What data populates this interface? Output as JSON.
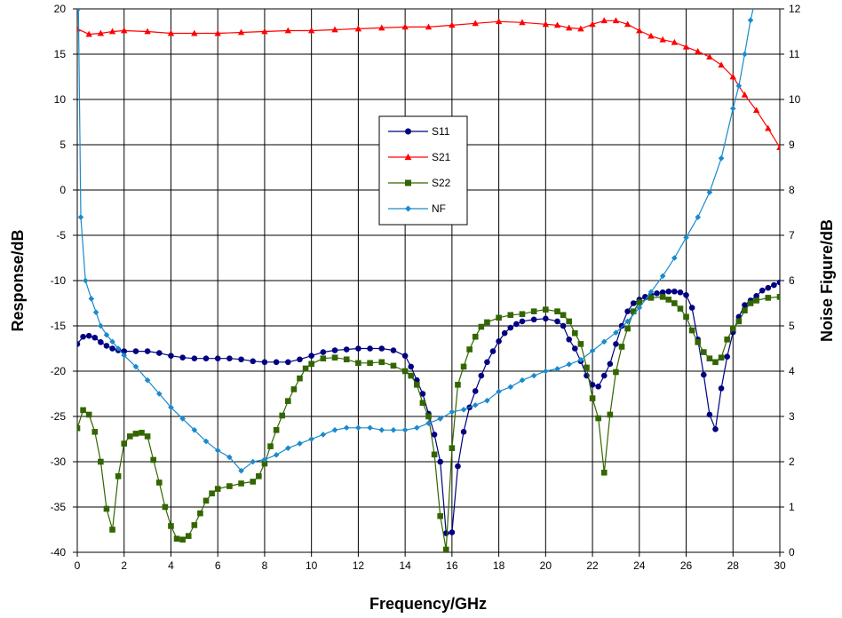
{
  "chart_data": {
    "type": "line",
    "title": "",
    "xlabel": "Frequency/GHz",
    "ylabel": "Response/dB",
    "y2label": "Noise Figure/dB",
    "xlim": [
      0,
      30
    ],
    "ylim": [
      -40,
      20
    ],
    "y2lim": [
      0,
      12
    ],
    "x_ticks": [
      "0",
      "2",
      "4",
      "6",
      "8",
      "10",
      "12",
      "14",
      "16",
      "18",
      "20",
      "22",
      "24",
      "26",
      "28",
      "30"
    ],
    "y_ticks": [
      "20",
      "15",
      "10",
      "5",
      "0",
      "-5",
      "-10",
      "-15",
      "-20",
      "-25",
      "-30",
      "-35",
      "-40"
    ],
    "y2_ticks": [
      "12",
      "11",
      "10",
      "9",
      "8",
      "7",
      "6",
      "5",
      "4",
      "3",
      "2",
      "1",
      "0"
    ],
    "grid": true,
    "legend_position": "center",
    "series": [
      {
        "name": "S11",
        "color": "#000080",
        "marker": "circle",
        "axis": "left",
        "points": [
          [
            0,
            -17
          ],
          [
            0.25,
            -16.2
          ],
          [
            0.5,
            -16.1
          ],
          [
            0.75,
            -16.3
          ],
          [
            1,
            -16.8
          ],
          [
            1.25,
            -17.2
          ],
          [
            1.5,
            -17.5
          ],
          [
            1.75,
            -17.7
          ],
          [
            2,
            -17.8
          ],
          [
            2.5,
            -17.8
          ],
          [
            3,
            -17.8
          ],
          [
            3.5,
            -18
          ],
          [
            4,
            -18.3
          ],
          [
            4.5,
            -18.5
          ],
          [
            5,
            -18.6
          ],
          [
            5.5,
            -18.6
          ],
          [
            6,
            -18.6
          ],
          [
            6.5,
            -18.6
          ],
          [
            7,
            -18.7
          ],
          [
            7.5,
            -18.9
          ],
          [
            8,
            -19
          ],
          [
            8.5,
            -19
          ],
          [
            9,
            -19
          ],
          [
            9.5,
            -18.7
          ],
          [
            10,
            -18.3
          ],
          [
            10.5,
            -17.9
          ],
          [
            11,
            -17.7
          ],
          [
            11.5,
            -17.6
          ],
          [
            12,
            -17.5
          ],
          [
            12.5,
            -17.5
          ],
          [
            13,
            -17.5
          ],
          [
            13.5,
            -17.7
          ],
          [
            14,
            -18.3
          ],
          [
            14.25,
            -19.5
          ],
          [
            14.5,
            -21
          ],
          [
            14.75,
            -22.5
          ],
          [
            15,
            -24.7
          ],
          [
            15.25,
            -27
          ],
          [
            15.5,
            -30
          ],
          [
            15.75,
            -37.9
          ],
          [
            16,
            -37.8
          ],
          [
            16.25,
            -30.5
          ],
          [
            16.5,
            -26.7
          ],
          [
            16.75,
            -24
          ],
          [
            17,
            -22.2
          ],
          [
            17.25,
            -20.5
          ],
          [
            17.5,
            -19
          ],
          [
            17.75,
            -17.8
          ],
          [
            18,
            -16.7
          ],
          [
            18.25,
            -15.8
          ],
          [
            18.5,
            -15.2
          ],
          [
            18.75,
            -14.8
          ],
          [
            19,
            -14.5
          ],
          [
            19.5,
            -14.3
          ],
          [
            20,
            -14.2
          ],
          [
            20.5,
            -14.5
          ],
          [
            20.75,
            -15
          ],
          [
            21,
            -16.5
          ],
          [
            21.25,
            -17.5
          ],
          [
            21.5,
            -18.9
          ],
          [
            21.75,
            -20.5
          ],
          [
            22,
            -21.5
          ],
          [
            22.25,
            -21.7
          ],
          [
            22.5,
            -20.5
          ],
          [
            22.75,
            -19.2
          ],
          [
            23,
            -17
          ],
          [
            23.25,
            -15
          ],
          [
            23.5,
            -13.4
          ],
          [
            23.75,
            -12.5
          ],
          [
            24,
            -12.1
          ],
          [
            24.25,
            -11.8
          ],
          [
            24.5,
            -11.6
          ],
          [
            24.75,
            -11.4
          ],
          [
            25,
            -11.3
          ],
          [
            25.25,
            -11.2
          ],
          [
            25.5,
            -11.2
          ],
          [
            25.75,
            -11.3
          ],
          [
            26,
            -11.6
          ],
          [
            26.25,
            -13
          ],
          [
            26.5,
            -16.5
          ],
          [
            26.75,
            -20.4
          ],
          [
            27,
            -24.8
          ],
          [
            27.25,
            -26.4
          ],
          [
            27.5,
            -21.9
          ],
          [
            27.75,
            -18.4
          ],
          [
            28,
            -15.7
          ],
          [
            28.25,
            -14
          ],
          [
            28.5,
            -12.7
          ],
          [
            28.75,
            -12.2
          ],
          [
            29,
            -11.7
          ],
          [
            29.25,
            -11.1
          ],
          [
            29.5,
            -10.8
          ],
          [
            29.75,
            -10.5
          ],
          [
            30,
            -10.2
          ]
        ]
      },
      {
        "name": "S21",
        "color": "#ff0000",
        "marker": "triangle",
        "axis": "left",
        "points": [
          [
            0,
            17.8
          ],
          [
            0.5,
            17.2
          ],
          [
            1,
            17.3
          ],
          [
            1.5,
            17.5
          ],
          [
            2,
            17.6
          ],
          [
            3,
            17.5
          ],
          [
            4,
            17.3
          ],
          [
            5,
            17.3
          ],
          [
            6,
            17.3
          ],
          [
            7,
            17.4
          ],
          [
            8,
            17.5
          ],
          [
            9,
            17.6
          ],
          [
            10,
            17.6
          ],
          [
            11,
            17.7
          ],
          [
            12,
            17.8
          ],
          [
            13,
            17.9
          ],
          [
            14,
            18
          ],
          [
            15,
            18
          ],
          [
            16,
            18.2
          ],
          [
            17,
            18.4
          ],
          [
            18,
            18.6
          ],
          [
            19,
            18.5
          ],
          [
            20,
            18.3
          ],
          [
            20.5,
            18.2
          ],
          [
            21,
            17.9
          ],
          [
            21.5,
            17.8
          ],
          [
            22,
            18.3
          ],
          [
            22.5,
            18.7
          ],
          [
            23,
            18.7
          ],
          [
            23.5,
            18.3
          ],
          [
            24,
            17.6
          ],
          [
            24.5,
            17
          ],
          [
            25,
            16.6
          ],
          [
            25.5,
            16.3
          ],
          [
            26,
            15.8
          ],
          [
            26.5,
            15.3
          ],
          [
            27,
            14.7
          ],
          [
            27.5,
            13.8
          ],
          [
            28,
            12.5
          ],
          [
            28.5,
            10.5
          ],
          [
            29,
            8.8
          ],
          [
            29.5,
            6.8
          ],
          [
            30,
            4.7
          ]
        ]
      },
      {
        "name": "S22",
        "color": "#336600",
        "marker": "square",
        "axis": "left",
        "points": [
          [
            0,
            -26.3
          ],
          [
            0.25,
            -24.3
          ],
          [
            0.5,
            -24.8
          ],
          [
            0.75,
            -26.7
          ],
          [
            1,
            -30
          ],
          [
            1.25,
            -35.2
          ],
          [
            1.5,
            -37.5
          ],
          [
            1.75,
            -31.6
          ],
          [
            2,
            -28
          ],
          [
            2.25,
            -27.2
          ],
          [
            2.5,
            -26.9
          ],
          [
            2.75,
            -26.8
          ],
          [
            3,
            -27.2
          ],
          [
            3.25,
            -29.8
          ],
          [
            3.5,
            -32.3
          ],
          [
            3.75,
            -35
          ],
          [
            4,
            -37.1
          ],
          [
            4.25,
            -38.5
          ],
          [
            4.5,
            -38.6
          ],
          [
            4.75,
            -38.2
          ],
          [
            5,
            -37
          ],
          [
            5.25,
            -35.7
          ],
          [
            5.5,
            -34.3
          ],
          [
            5.75,
            -33.5
          ],
          [
            6,
            -33
          ],
          [
            6.5,
            -32.7
          ],
          [
            7,
            -32.4
          ],
          [
            7.5,
            -32.2
          ],
          [
            7.75,
            -31.6
          ],
          [
            8,
            -30.2
          ],
          [
            8.25,
            -28.3
          ],
          [
            8.5,
            -26.5
          ],
          [
            8.75,
            -24.9
          ],
          [
            9,
            -23.3
          ],
          [
            9.25,
            -22
          ],
          [
            9.5,
            -20.8
          ],
          [
            9.75,
            -19.7
          ],
          [
            10,
            -19.2
          ],
          [
            10.5,
            -18.6
          ],
          [
            11,
            -18.5
          ],
          [
            11.5,
            -18.7
          ],
          [
            12,
            -19.1
          ],
          [
            12.5,
            -19.1
          ],
          [
            13,
            -19
          ],
          [
            13.5,
            -19.4
          ],
          [
            14,
            -20
          ],
          [
            14.25,
            -20.5
          ],
          [
            14.5,
            -21.5
          ],
          [
            14.75,
            -23.5
          ],
          [
            15,
            -25
          ],
          [
            15.25,
            -29.2
          ],
          [
            15.5,
            -36
          ],
          [
            15.75,
            -39.7
          ],
          [
            16,
            -28.5
          ],
          [
            16.25,
            -21.5
          ],
          [
            16.5,
            -19.5
          ],
          [
            16.75,
            -17.6
          ],
          [
            17,
            -16.2
          ],
          [
            17.25,
            -15.1
          ],
          [
            17.5,
            -14.6
          ],
          [
            18,
            -14.1
          ],
          [
            18.5,
            -13.8
          ],
          [
            19,
            -13.7
          ],
          [
            19.5,
            -13.4
          ],
          [
            20,
            -13.2
          ],
          [
            20.5,
            -13.4
          ],
          [
            20.75,
            -13.8
          ],
          [
            21,
            -14.5
          ],
          [
            21.25,
            -15.8
          ],
          [
            21.5,
            -17
          ],
          [
            21.75,
            -19.6
          ],
          [
            22,
            -23
          ],
          [
            22.25,
            -25.2
          ],
          [
            22.5,
            -31.2
          ],
          [
            22.75,
            -24.8
          ],
          [
            23,
            -20.1
          ],
          [
            23.25,
            -17.3
          ],
          [
            23.5,
            -15.3
          ],
          [
            23.75,
            -13.4
          ],
          [
            24,
            -12.4
          ],
          [
            24.5,
            -11.9
          ],
          [
            25,
            -11.8
          ],
          [
            25.25,
            -12.1
          ],
          [
            25.5,
            -12.5
          ],
          [
            25.75,
            -13.1
          ],
          [
            26,
            -14
          ],
          [
            26.25,
            -15.5
          ],
          [
            26.5,
            -16.8
          ],
          [
            26.75,
            -17.9
          ],
          [
            27,
            -18.6
          ],
          [
            27.25,
            -19
          ],
          [
            27.5,
            -18.5
          ],
          [
            27.75,
            -16.5
          ],
          [
            28,
            -15.3
          ],
          [
            28.25,
            -14.5
          ],
          [
            28.5,
            -13.3
          ],
          [
            28.75,
            -12.5
          ],
          [
            29,
            -12.2
          ],
          [
            29.5,
            -11.9
          ],
          [
            30,
            -11.8
          ]
        ]
      },
      {
        "name": "NF",
        "color": "#1a8acc",
        "marker": "diamond",
        "axis": "right",
        "points": [
          [
            0.05,
            12
          ],
          [
            0.15,
            7.4
          ],
          [
            0.35,
            6.0
          ],
          [
            0.6,
            5.6
          ],
          [
            0.8,
            5.3
          ],
          [
            1,
            5.0
          ],
          [
            1.25,
            4.8
          ],
          [
            1.5,
            4.65
          ],
          [
            1.75,
            4.5
          ],
          [
            2,
            4.35
          ],
          [
            2.5,
            4.1
          ],
          [
            3,
            3.8
          ],
          [
            3.5,
            3.5
          ],
          [
            4,
            3.2
          ],
          [
            4.5,
            2.95
          ],
          [
            5,
            2.7
          ],
          [
            5.5,
            2.45
          ],
          [
            6,
            2.25
          ],
          [
            6.5,
            2.1
          ],
          [
            7,
            1.8
          ],
          [
            7.5,
            2.0
          ],
          [
            8,
            2.05
          ],
          [
            8.5,
            2.15
          ],
          [
            9,
            2.3
          ],
          [
            9.5,
            2.4
          ],
          [
            10,
            2.5
          ],
          [
            10.5,
            2.6
          ],
          [
            11,
            2.7
          ],
          [
            11.5,
            2.75
          ],
          [
            12,
            2.75
          ],
          [
            12.5,
            2.75
          ],
          [
            13,
            2.7
          ],
          [
            13.5,
            2.7
          ],
          [
            14,
            2.7
          ],
          [
            14.5,
            2.75
          ],
          [
            15,
            2.85
          ],
          [
            15.5,
            2.95
          ],
          [
            16,
            3.1
          ],
          [
            16.5,
            3.15
          ],
          [
            17,
            3.25
          ],
          [
            17.5,
            3.35
          ],
          [
            18,
            3.55
          ],
          [
            18.5,
            3.65
          ],
          [
            19,
            3.8
          ],
          [
            19.5,
            3.9
          ],
          [
            20,
            4.0
          ],
          [
            20.5,
            4.05
          ],
          [
            21,
            4.15
          ],
          [
            21.5,
            4.25
          ],
          [
            22,
            4.45
          ],
          [
            22.5,
            4.65
          ],
          [
            23,
            4.85
          ],
          [
            23.5,
            5.1
          ],
          [
            24,
            5.4
          ],
          [
            24.5,
            5.75
          ],
          [
            25,
            6.1
          ],
          [
            25.5,
            6.5
          ],
          [
            26,
            6.95
          ],
          [
            26.5,
            7.4
          ],
          [
            27,
            7.95
          ],
          [
            27.5,
            8.7
          ],
          [
            28,
            9.8
          ],
          [
            28.25,
            10.3
          ],
          [
            28.5,
            11.0
          ],
          [
            28.75,
            11.75
          ],
          [
            29,
            12.3
          ]
        ]
      }
    ]
  }
}
